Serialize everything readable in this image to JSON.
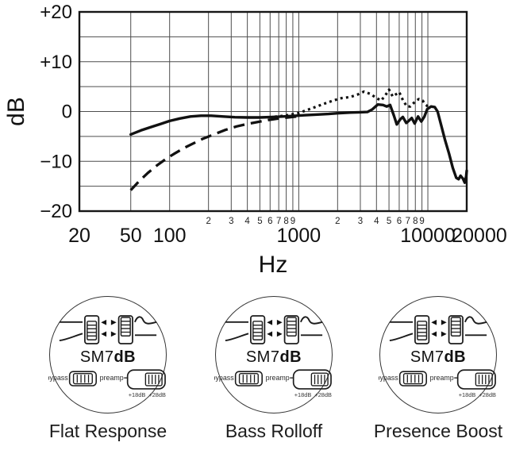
{
  "chart": {
    "xlabel": "Hz",
    "ylabel": "dB",
    "chart_data": {
      "type": "line",
      "x_scale": "log",
      "xlim": [
        20,
        20000
      ],
      "ylim": [
        -20,
        20
      ],
      "grid": true,
      "xlabel": "Hz",
      "ylabel": "dB",
      "y_gridline_step": 5,
      "y_ticks": [
        {
          "value": 20,
          "label": "+20"
        },
        {
          "value": 10,
          "label": "+10"
        },
        {
          "value": 0,
          "label": "0"
        },
        {
          "value": -10,
          "label": "−10"
        },
        {
          "value": -20,
          "label": "−20"
        }
      ],
      "x_major_ticks": [
        {
          "value": 20,
          "label": "20"
        },
        {
          "value": 50,
          "label": "50"
        },
        {
          "value": 100,
          "label": "100"
        },
        {
          "value": 1000,
          "label": "1000"
        },
        {
          "value": 10000,
          "label": "10000"
        },
        {
          "value": 20000,
          "label": "20000"
        }
      ],
      "x_minor_ticks": [
        200,
        300,
        400,
        500,
        600,
        700,
        800,
        900,
        2000,
        3000,
        4000,
        5000,
        6000,
        7000,
        8000,
        9000
      ],
      "x_gridlines": [
        50,
        100,
        200,
        300,
        400,
        500,
        600,
        700,
        800,
        900,
        1000,
        2000,
        3000,
        4000,
        5000,
        6000,
        7000,
        8000,
        9000,
        10000
      ],
      "series": [
        {
          "name": "Flat Response",
          "style": "solid",
          "points": [
            [
              50,
              -4.6
            ],
            [
              60,
              -3.8
            ],
            [
              72,
              -3.1
            ],
            [
              85,
              -2.5
            ],
            [
              100,
              -1.9
            ],
            [
              120,
              -1.4
            ],
            [
              145,
              -1.0
            ],
            [
              175,
              -0.85
            ],
            [
              210,
              -0.85
            ],
            [
              260,
              -1.0
            ],
            [
              320,
              -1.15
            ],
            [
              400,
              -1.2
            ],
            [
              500,
              -1.2
            ],
            [
              620,
              -1.1
            ],
            [
              750,
              -1.0
            ],
            [
              900,
              -0.9
            ],
            [
              1100,
              -0.75
            ],
            [
              1400,
              -0.6
            ],
            [
              1700,
              -0.5
            ],
            [
              2000,
              -0.35
            ],
            [
              2500,
              -0.2
            ],
            [
              3000,
              -0.15
            ],
            [
              3400,
              -0.1
            ],
            [
              3700,
              0.4
            ],
            [
              4100,
              1.4
            ],
            [
              4500,
              1.3
            ],
            [
              4800,
              1.0
            ],
            [
              5100,
              1.3
            ],
            [
              5450,
              -0.8
            ],
            [
              5750,
              -2.6
            ],
            [
              6100,
              -1.6
            ],
            [
              6400,
              -1.1
            ],
            [
              6800,
              -2.3
            ],
            [
              7100,
              -1.9
            ],
            [
              7500,
              -1.3
            ],
            [
              7900,
              -2.4
            ],
            [
              8400,
              -1.0
            ],
            [
              8900,
              -2.0
            ],
            [
              9400,
              -1.0
            ],
            [
              9900,
              0.5
            ],
            [
              10600,
              1.0
            ],
            [
              11300,
              0.9
            ],
            [
              11900,
              0.0
            ],
            [
              12600,
              -2.5
            ],
            [
              13600,
              -5.8
            ],
            [
              14600,
              -8.5
            ],
            [
              15600,
              -11.3
            ],
            [
              16600,
              -13.3
            ],
            [
              17300,
              -13.6
            ],
            [
              17900,
              -12.9
            ],
            [
              18700,
              -13.5
            ],
            [
              19300,
              -14.3
            ],
            [
              19800,
              -13.0
            ],
            [
              20000,
              -11.9
            ]
          ]
        },
        {
          "name": "Bass Rolloff",
          "style": "dashed",
          "points": [
            [
              50,
              -15.8
            ],
            [
              58,
              -14.0
            ],
            [
              68,
              -12.3
            ],
            [
              80,
              -10.8
            ],
            [
              95,
              -9.4
            ],
            [
              110,
              -8.4
            ],
            [
              130,
              -7.3
            ],
            [
              150,
              -6.5
            ],
            [
              180,
              -5.5
            ],
            [
              220,
              -4.6
            ],
            [
              270,
              -3.7
            ],
            [
              330,
              -3.0
            ],
            [
              400,
              -2.5
            ],
            [
              480,
              -2.1
            ],
            [
              580,
              -1.7
            ],
            [
              700,
              -1.4
            ],
            [
              850,
              -1.15
            ],
            [
              1000,
              -0.95
            ]
          ]
        },
        {
          "name": "Presence Boost",
          "style": "dotted",
          "points": [
            [
              650,
              -1.05
            ],
            [
              800,
              -0.8
            ],
            [
              1000,
              -0.3
            ],
            [
              1250,
              0.6
            ],
            [
              1550,
              1.5
            ],
            [
              1850,
              2.2
            ],
            [
              2150,
              2.7
            ],
            [
              2500,
              2.9
            ],
            [
              2850,
              3.4
            ],
            [
              3200,
              4.0
            ],
            [
              3600,
              3.5
            ],
            [
              4000,
              2.7
            ],
            [
              4350,
              2.2
            ],
            [
              4700,
              3.3
            ],
            [
              5000,
              4.4
            ],
            [
              5350,
              3.0
            ],
            [
              5700,
              3.5
            ],
            [
              6000,
              3.9
            ],
            [
              6450,
              2.1
            ],
            [
              6900,
              1.0
            ],
            [
              7300,
              1.0
            ],
            [
              7900,
              1.9
            ],
            [
              8500,
              2.5
            ],
            [
              9100,
              2.2
            ],
            [
              9600,
              1.4
            ],
            [
              10000,
              1.0
            ]
          ]
        }
      ]
    }
  },
  "panels": [
    {
      "caption": "Flat Response",
      "model_prefix": "SM7",
      "model_bold": "dB",
      "switches": {
        "bypass_label": "bypass",
        "preamp_label": "preamp",
        "gain_low": "+18dB",
        "gain_high": "+28dB"
      }
    },
    {
      "caption": "Bass Rolloff",
      "model_prefix": "SM7",
      "model_bold": "dB",
      "switches": {
        "bypass_label": "bypass",
        "preamp_label": "preamp",
        "gain_low": "+18dB",
        "gain_high": "+28dB"
      }
    },
    {
      "caption": "Presence Boost",
      "model_prefix": "SM7",
      "model_bold": "dB",
      "switches": {
        "bypass_label": "bypass",
        "preamp_label": "preamp",
        "gain_low": "+18dB",
        "gain_high": "+28dB"
      }
    }
  ]
}
